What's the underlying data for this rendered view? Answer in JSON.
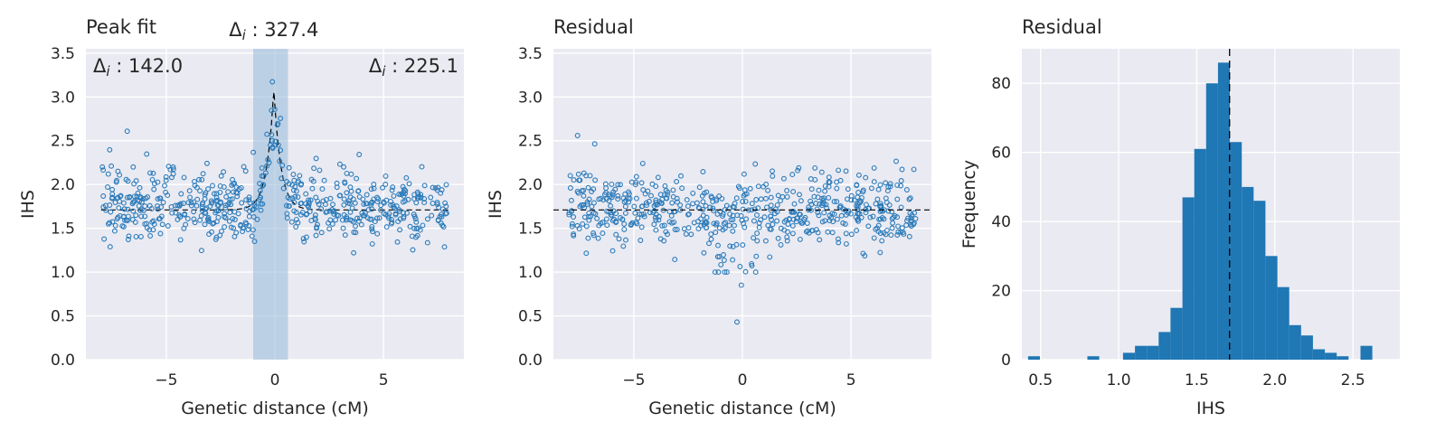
{
  "colors": {
    "panel_bg": "#eaeaf2",
    "grid": "#ffffff",
    "marker": "#2b7bba",
    "bar": "#1f77b4",
    "peak_window": "#9dbedc",
    "fit_line": "#000000"
  },
  "chart_data": [
    {
      "type": "scatter",
      "title": "Peak fit",
      "xlabel": "Genetic distance (cM)",
      "ylabel": "IHS",
      "xlim": [
        -8.7,
        8.7
      ],
      "ylim": [
        0,
        3.55
      ],
      "xticks": [
        -5,
        0,
        5
      ],
      "xtick_labels": [
        "−5",
        "0",
        "5"
      ],
      "yticks": [
        0.0,
        0.5,
        1.0,
        1.5,
        2.0,
        2.5,
        3.0,
        3.5
      ],
      "ytick_labels": [
        "0.0",
        "0.5",
        "1.0",
        "1.5",
        "2.0",
        "2.5",
        "3.0",
        "3.5"
      ],
      "grid": true,
      "x_range": [
        -8,
        8
      ],
      "n_points": 600,
      "baseline": 1.71,
      "peak_center": -0.05,
      "peak_height": 3.1,
      "peak_window": [
        -1.0,
        0.6
      ],
      "annotations": [
        {
          "delta": "Δ",
          "sub": "i",
          "text": " : 142.0",
          "placement": "top-left"
        },
        {
          "delta": "Δ",
          "sub": "i",
          "text": " : 327.4",
          "placement": "above-peak"
        },
        {
          "delta": "Δ",
          "sub": "i",
          "text": " : 225.1",
          "placement": "top-right"
        }
      ]
    },
    {
      "type": "scatter",
      "title": "Residual",
      "xlabel": "Genetic distance (cM)",
      "ylabel": "IHS",
      "xlim": [
        -8.7,
        8.7
      ],
      "ylim": [
        0,
        3.55
      ],
      "xticks": [
        -5,
        0,
        5
      ],
      "xtick_labels": [
        "−5",
        "0",
        "5"
      ],
      "yticks": [
        0.0,
        0.5,
        1.0,
        1.5,
        2.0,
        2.5,
        3.0,
        3.5
      ],
      "ytick_labels": [
        "0.0",
        "0.5",
        "1.0",
        "1.5",
        "2.0",
        "2.5",
        "3.0",
        "3.5"
      ],
      "grid": true,
      "x_range": [
        -8,
        8
      ],
      "n_points": 600,
      "reference_line": 1.71
    },
    {
      "type": "bar",
      "title": "Residual",
      "xlabel": "IHS",
      "ylabel": "Frequency",
      "xlim": [
        0.38,
        2.8
      ],
      "ylim": [
        0,
        90
      ],
      "xticks": [
        0.5,
        1.0,
        1.5,
        2.0,
        2.5
      ],
      "xtick_labels": [
        "0.5",
        "1.0",
        "1.5",
        "2.0",
        "2.5"
      ],
      "yticks": [
        0,
        20,
        40,
        60,
        80
      ],
      "ytick_labels": [
        "0",
        "20",
        "40",
        "60",
        "80"
      ],
      "grid": true,
      "bin_start": 0.42,
      "bin_width": 0.076,
      "values": [
        1,
        0,
        0,
        0,
        0,
        1,
        0,
        0,
        2,
        4,
        4,
        8,
        15,
        47,
        61,
        80,
        86,
        63,
        50,
        46,
        30,
        21,
        10,
        7,
        3,
        2,
        1,
        0,
        4
      ],
      "reference_line": 1.71
    }
  ]
}
